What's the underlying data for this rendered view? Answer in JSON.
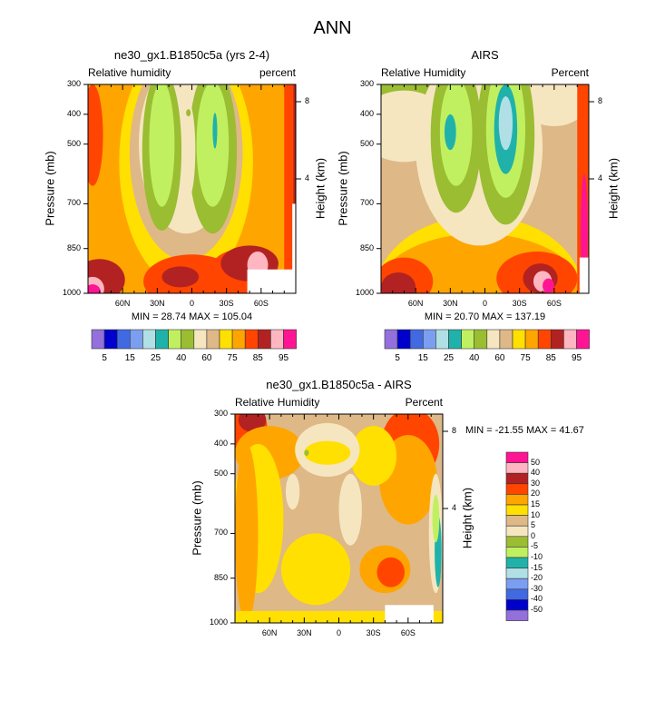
{
  "chart_data": {
    "type": "heatmap",
    "title": "ANN",
    "palette": [
      "#9370DB",
      "#0000CD",
      "#4169E1",
      "#7B9EF0",
      "#B0E0E6",
      "#20B2AA",
      "#C0F060",
      "#9ABD32",
      "#F5E6C0",
      "#DEB887",
      "#FFE000",
      "#FFA500",
      "#FF4500",
      "#B22222",
      "#FFB6C1",
      "#FF1493"
    ],
    "panels": [
      {
        "id": "model",
        "title": "ne30_gx1.B1850c5a (yrs 2-4)",
        "left_label": "Relative humidity",
        "right_label": "percent",
        "stats": "MIN =  28.74  MAX = 105.04",
        "ylabel": "Pressure (mb)",
        "y2label": "Height (km)",
        "xticks": [
          "60N",
          "30N",
          "0",
          "30S",
          "60S"
        ],
        "xtick_values": [
          60,
          30,
          0,
          -30,
          -60
        ],
        "yticks": [
          "300",
          "400",
          "500",
          "700",
          "850",
          "1000"
        ],
        "ytick_values": [
          300,
          400,
          500,
          700,
          850,
          1000
        ],
        "y2ticks": [
          "8",
          "4"
        ],
        "y2tick_values": [
          8,
          4
        ],
        "xlim": [
          90,
          -90
        ],
        "ylim": [
          300,
          1000
        ]
      },
      {
        "id": "obs",
        "title": "AIRS",
        "left_label": "Relative Humidity",
        "right_label": "Percent",
        "stats": "MIN =  20.70  MAX = 137.19",
        "ylabel": "Pressure (mb)",
        "y2label": "Height (km)",
        "xticks": [
          "60N",
          "30N",
          "0",
          "30S",
          "60S"
        ],
        "xtick_values": [
          60,
          30,
          0,
          -30,
          -60
        ],
        "yticks": [
          "300",
          "400",
          "500",
          "700",
          "850",
          "1000"
        ],
        "ytick_values": [
          300,
          400,
          500,
          700,
          850,
          1000
        ],
        "y2ticks": [
          "8",
          "4"
        ],
        "y2tick_values": [
          8,
          4
        ],
        "xlim": [
          90,
          -90
        ],
        "ylim": [
          300,
          1000
        ]
      },
      {
        "id": "diff",
        "title": "ne30_gx1.B1850c5a - AIRS",
        "left_label": "Relative Humidity",
        "right_label": "Percent",
        "stats": "MIN = -21.55  MAX =  41.67",
        "ylabel": "Pressure (mb)",
        "y2label": "Height (km)",
        "xticks": [
          "60N",
          "30N",
          "0",
          "30S",
          "60S"
        ],
        "xtick_values": [
          60,
          30,
          0,
          -30,
          -60
        ],
        "yticks": [
          "300",
          "400",
          "500",
          "700",
          "850",
          "1000"
        ],
        "ytick_values": [
          300,
          400,
          500,
          700,
          850,
          1000
        ],
        "y2ticks": [
          "8",
          "4"
        ],
        "y2tick_values": [
          8,
          4
        ],
        "xlim": [
          90,
          -90
        ],
        "ylim": [
          300,
          1000
        ]
      }
    ],
    "colorbar_main": {
      "labels": [
        "5",
        "15",
        "25",
        "40",
        "60",
        "75",
        "85",
        "95"
      ]
    },
    "colorbar_diff": {
      "labels": [
        "50",
        "40",
        "30",
        "20",
        "15",
        "10",
        "5",
        "0",
        "-5",
        "-10",
        "-15",
        "-20",
        "-30",
        "-40",
        "-50"
      ]
    }
  }
}
